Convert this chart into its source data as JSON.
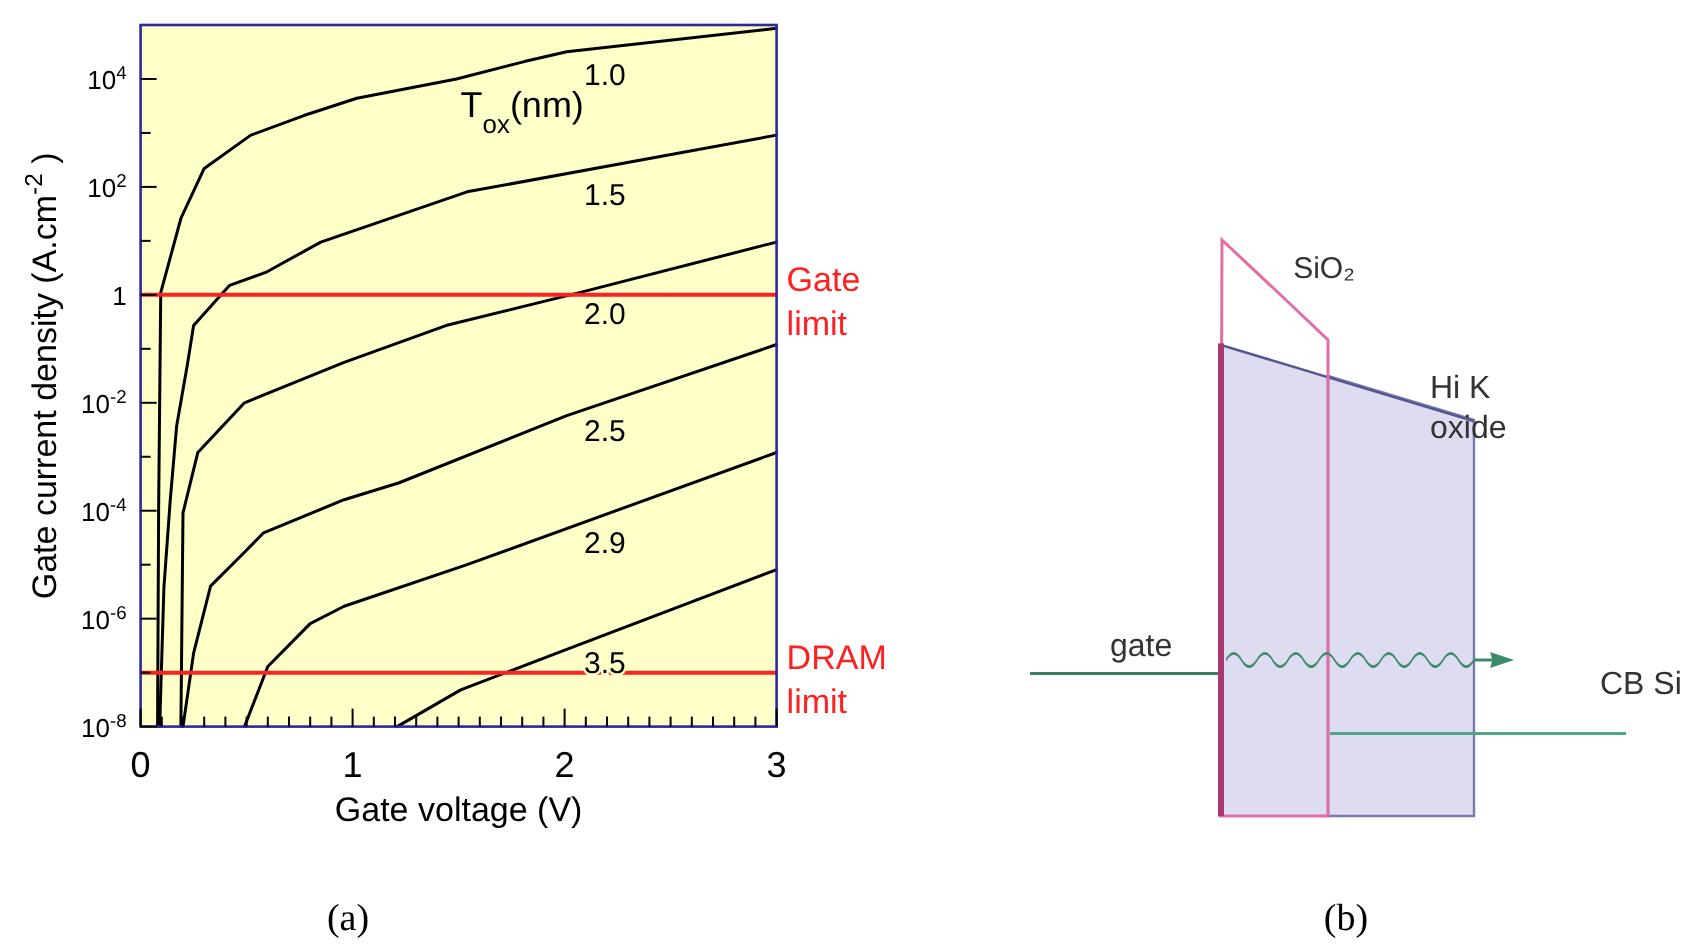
{
  "chart_data": [
    {
      "type": "line",
      "title": "(a)",
      "xlabel": "Gate voltage (V)",
      "ylabel": "Gate current density (A.cm$^{-2}$ )",
      "annotations": [
        "T$_{ox}$(nm)"
      ],
      "log": "y",
      "xlim": [
        0,
        3
      ],
      "ylim": [
        1e-08,
        100000.0
      ],
      "xticks": [
        0,
        {
          "value": 0.1,
          "label": null
        },
        {
          "value": 0.2,
          "label": null
        },
        {
          "value": 0.3,
          "label": null
        },
        {
          "value": 0.4,
          "label": null
        },
        {
          "value": 0.5,
          "label": null
        },
        {
          "value": 0.6,
          "label": null
        },
        {
          "value": 0.7,
          "label": null
        },
        {
          "value": 0.8,
          "label": null
        },
        {
          "value": 0.9,
          "label": null
        },
        1,
        {
          "value": 1.1,
          "label": null
        },
        {
          "value": 1.2,
          "label": null
        },
        {
          "value": 1.3,
          "label": null
        },
        {
          "value": 1.4,
          "label": null
        },
        {
          "value": 1.5,
          "label": null
        },
        {
          "value": 1.6,
          "label": null
        },
        {
          "value": 1.7,
          "label": null
        },
        {
          "value": 1.8,
          "label": null
        },
        {
          "value": 1.9,
          "label": null
        },
        2,
        {
          "value": 2.1,
          "label": null
        },
        {
          "value": 2.2,
          "label": null
        },
        {
          "value": 2.3,
          "label": null
        },
        {
          "value": 2.4,
          "label": null
        },
        {
          "value": 2.5,
          "label": null
        },
        {
          "value": 2.6,
          "label": null
        },
        {
          "value": 2.7,
          "label": null
        },
        {
          "value": 2.8,
          "label": null
        },
        {
          "value": 2.9,
          "label": null
        },
        3
      ],
      "yticks": [
        {
          "value": 1e-08,
          "label": "10$^{-8}$"
        },
        {
          "value": 1e-07,
          "label": null
        },
        {
          "value": 1e-06,
          "label": "10$^{-6}$"
        },
        {
          "value": 1e-05,
          "label": null
        },
        {
          "value": 0.0001,
          "label": "10$^{-4}$"
        },
        {
          "value": 0.001,
          "label": null
        },
        {
          "value": 0.01,
          "label": "10$^{-2}$"
        },
        {
          "value": 0.1,
          "label": null
        },
        1,
        {
          "value": 10,
          "label": null
        },
        {
          "value": 100,
          "label": "10$^{2}$"
        },
        {
          "value": 1000,
          "label": null
        },
        {
          "value": 10000,
          "label": "10$^{4}$"
        }
      ],
      "series": [
        {
          "name": "1.0",
          "color": "#000000",
          "x": [
            0.08,
            0.085,
            0.095,
            0.19,
            0.3,
            0.52,
            0.77,
            1.02,
            1.49,
            1.81,
            2.01,
            3.0
          ],
          "values": [
            1e-08,
            0.0001,
            1.1,
            26,
            220,
            910,
            2100,
            4400,
            10000,
            21000,
            32000,
            87000
          ]
        },
        {
          "name": "1.5",
          "color": "#000000",
          "x": [
            0.09,
            0.11,
            0.14,
            0.17,
            0.22,
            0.25,
            0.42,
            0.59,
            0.85,
            1.54,
            3.0
          ],
          "values": [
            1e-08,
            3.8e-06,
            0.00016,
            0.0037,
            0.049,
            0.27,
            1.5,
            2.6,
            9.5,
            81,
            910
          ]
        },
        {
          "name": "2.0",
          "color": "#000000",
          "x": [
            0.19,
            0.2,
            0.27,
            0.49,
            0.96,
            1.44,
            2.07,
            3.0
          ],
          "values": [
            1e-08,
            9.1e-05,
            0.0012,
            0.01,
            0.056,
            0.27,
            1.1,
            9.5
          ]
        },
        {
          "name": "2.5",
          "color": "#000000",
          "x": [
            0.2,
            0.25,
            0.33,
            0.49,
            0.58,
            0.96,
            1.22,
            2.01,
            3.0
          ],
          "values": [
            1e-08,
            2.3e-07,
            4e-06,
            1.7e-05,
            3.9e-05,
            0.00016,
            0.00033,
            0.0058,
            0.12
          ]
        },
        {
          "name": "2.9",
          "color": "#000000",
          "x": [
            0.49,
            0.6,
            0.8,
            0.96,
            1.54,
            3.0
          ],
          "values": [
            1e-08,
            1.3e-07,
            8.1e-07,
            1.7e-06,
            1e-05,
            0.0012
          ]
        },
        {
          "name": "3.5",
          "color": "#000000",
          "x": [
            1.21,
            1.51,
            2.01,
            3.0
          ],
          "values": [
            1e-08,
            4.8e-08,
            2.7e-07,
            8.1e-06
          ]
        }
      ],
      "ref_lines": [
        {
          "axis": "y",
          "value": 1,
          "label": "Gate limit",
          "color": "#ff2020"
        },
        {
          "axis": "y",
          "value": 1e-07,
          "label": "DRAM limit",
          "color": "#ff2020"
        }
      ]
    },
    {
      "type": "other",
      "title": "(b)",
      "annotations": [
        "SiO₂",
        "Hi K oxide",
        "gate",
        "CB Si"
      ]
    }
  ]
}
